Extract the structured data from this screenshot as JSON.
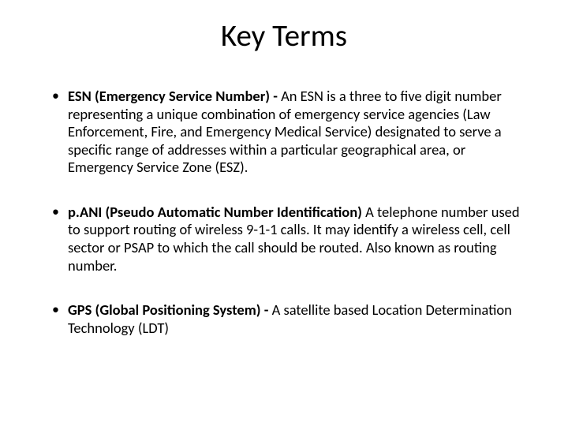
{
  "title": "Key Terms",
  "terms": [
    {
      "name": "ESN (Emergency Service Number) - ",
      "definition": "An ESN is a three to five digit number representing a unique combination of emergency service agencies (Law Enforcement, Fire, and Emergency Medical Service) designated to serve a specific range of addresses within a particular geographical area, or Emergency Service Zone (ESZ)."
    },
    {
      "name": "p.ANI (Pseudo Automatic Number Identification) ",
      "definition": "A telephone number used to support routing of wireless 9-1-1 calls. It may identify a wireless cell, cell sector or PSAP to which the call should be routed. Also known as routing number."
    },
    {
      "name": "GPS (Global Positioning System) - ",
      "definition": "A satellite based Location Determination Technology (LDT)"
    }
  ],
  "colors": {
    "background": "#ffffff",
    "text": "#000000"
  },
  "fontsizes": {
    "title": 39,
    "body": 18.5
  }
}
